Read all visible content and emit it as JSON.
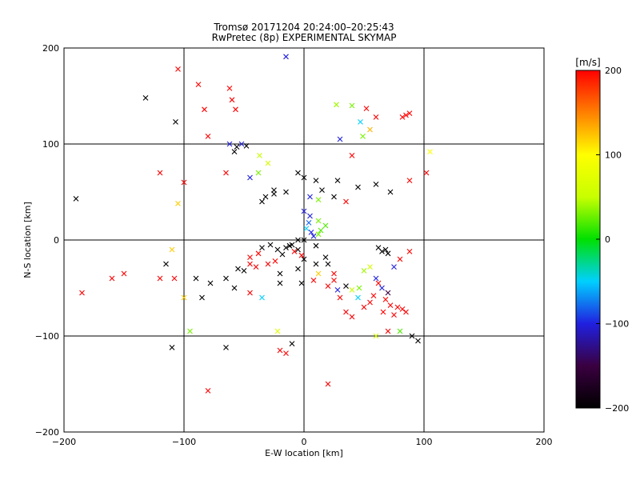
{
  "chart_data": {
    "type": "scatter",
    "title": "Tromsø 20171204 20:24:00–20:25:43",
    "subtitle": "RwPretec (8p) EXPERIMENTAL SKYMAP",
    "xlabel": "E-W location [km]",
    "ylabel": "N-S location [km]",
    "xlim": [
      -200,
      200
    ],
    "ylim": [
      -200,
      200
    ],
    "xticks": [
      -200,
      -100,
      0,
      100,
      200
    ],
    "yticks": [
      -200,
      -100,
      0,
      100,
      200
    ],
    "grid": true,
    "colorbar": {
      "label": "[m/s]",
      "min": -200,
      "max": 200,
      "ticks": [
        200,
        100,
        0,
        -100,
        -200
      ],
      "colormap": [
        "#000000",
        "#3a0040",
        "#2020e0",
        "#00d0ff",
        "#00e000",
        "#c8ff00",
        "#ffff00",
        "#ff8000",
        "#ff0000"
      ]
    },
    "markers": {
      "cross": "x",
      "dot": "."
    },
    "points": [
      [
        -132,
        148,
        "x",
        -200
      ],
      [
        -107,
        123,
        "x",
        -200
      ],
      [
        -105,
        178,
        "x",
        200
      ],
      [
        -88,
        162,
        "x",
        200
      ],
      [
        -83,
        136,
        "x",
        200
      ],
      [
        -62,
        158,
        "x",
        200
      ],
      [
        -60,
        146,
        "x",
        200
      ],
      [
        -57,
        136,
        "x",
        200
      ],
      [
        -15,
        191,
        "x",
        -100
      ],
      [
        27,
        141,
        "x",
        40
      ],
      [
        40,
        140,
        "x",
        30
      ],
      [
        52,
        137,
        "x",
        200
      ],
      [
        60,
        128,
        "x",
        200
      ],
      [
        55,
        115,
        "x",
        130
      ],
      [
        47,
        123,
        "x",
        -50
      ],
      [
        49,
        108,
        "x",
        30
      ],
      [
        85,
        130,
        "x",
        200
      ],
      [
        88,
        132,
        "x",
        200
      ],
      [
        82,
        128,
        "x",
        200
      ],
      [
        30,
        105,
        "x",
        -100
      ],
      [
        -80,
        108,
        "x",
        200
      ],
      [
        -62,
        100,
        "x",
        -100
      ],
      [
        -56,
        97,
        "x",
        -200
      ],
      [
        -52,
        100,
        "x",
        -100
      ],
      [
        -48,
        98,
        "x",
        -200
      ],
      [
        -58,
        92,
        "x",
        -200
      ],
      [
        -120,
        70,
        "x",
        200
      ],
      [
        -105,
        38,
        "x",
        120
      ],
      [
        -190,
        43,
        "x",
        -200
      ],
      [
        -100,
        60,
        "x",
        200
      ],
      [
        -65,
        70,
        "x",
        200
      ],
      [
        -45,
        65,
        "x",
        -100
      ],
      [
        -38,
        70,
        "x",
        30
      ],
      [
        -37,
        88,
        "x",
        50
      ],
      [
        -30,
        80,
        "x",
        60
      ],
      [
        -25,
        52,
        "x",
        -200
      ],
      [
        -15,
        50,
        "x",
        -200
      ],
      [
        -5,
        70,
        "x",
        -200
      ],
      [
        0,
        65,
        "x",
        -200
      ],
      [
        10,
        62,
        "x",
        -200
      ],
      [
        15,
        52,
        "x",
        -200
      ],
      [
        28,
        62,
        "x",
        -200
      ],
      [
        45,
        55,
        "x",
        -200
      ],
      [
        60,
        58,
        "x",
        -200
      ],
      [
        72,
        50,
        "x",
        -200
      ],
      [
        88,
        62,
        "x",
        200
      ],
      [
        102,
        70,
        "x",
        200
      ],
      [
        105,
        92,
        "x",
        100
      ],
      [
        40,
        88,
        "x",
        200
      ],
      [
        -110,
        -10,
        "x",
        120
      ],
      [
        -108,
        -40,
        "x",
        200
      ],
      [
        -115,
        -25,
        "x",
        -200
      ],
      [
        -90,
        -40,
        "x",
        -200
      ],
      [
        -85,
        -60,
        "x",
        -200
      ],
      [
        -78,
        -45,
        "x",
        -200
      ],
      [
        -65,
        -40,
        "x",
        -200
      ],
      [
        -58,
        -50,
        "x",
        -200
      ],
      [
        -45,
        -55,
        "x",
        200
      ],
      [
        -45,
        -25,
        "x",
        200
      ],
      [
        -35,
        -60,
        "x",
        -50
      ],
      [
        -28,
        -5,
        "x",
        -200
      ],
      [
        -22,
        -10,
        "x",
        -200
      ],
      [
        -18,
        -15,
        "x",
        -200
      ],
      [
        -10,
        -5,
        "x",
        -200
      ],
      [
        -5,
        -10,
        "x",
        -200
      ],
      [
        0,
        -20,
        "x",
        -200
      ],
      [
        10,
        -25,
        "x",
        -200
      ],
      [
        18,
        -18,
        "x",
        -200
      ],
      [
        20,
        -25,
        "x",
        -200
      ],
      [
        25,
        -35,
        "x",
        200
      ],
      [
        30,
        -60,
        "x",
        200
      ],
      [
        35,
        -75,
        "x",
        200
      ],
      [
        40,
        -80,
        "x",
        200
      ],
      [
        50,
        -70,
        "x",
        200
      ],
      [
        58,
        -58,
        "x",
        200
      ],
      [
        62,
        -45,
        "x",
        200
      ],
      [
        68,
        -62,
        "x",
        200
      ],
      [
        72,
        -68,
        "x",
        200
      ],
      [
        78,
        -70,
        "x",
        200
      ],
      [
        82,
        -72,
        "x",
        200
      ],
      [
        85,
        -75,
        "x",
        200
      ],
      [
        75,
        -78,
        "x",
        200
      ],
      [
        66,
        -75,
        "x",
        200
      ],
      [
        55,
        -65,
        "x",
        200
      ],
      [
        45,
        -60,
        "x",
        -50
      ],
      [
        35,
        -48,
        "x",
        -200
      ],
      [
        28,
        -52,
        "x",
        -100
      ],
      [
        65,
        -12,
        "x",
        -200
      ],
      [
        68,
        -10,
        "x",
        -200
      ],
      [
        70,
        -14,
        "x",
        -200
      ],
      [
        62,
        -8,
        "x",
        -200
      ],
      [
        75,
        -28,
        "x",
        -100
      ],
      [
        88,
        -12,
        "x",
        200
      ],
      [
        95,
        -105,
        "x",
        -200
      ],
      [
        90,
        -100,
        "x",
        -200
      ],
      [
        70,
        -95,
        "x",
        200
      ],
      [
        60,
        -100,
        "x",
        60
      ],
      [
        80,
        -95,
        "x",
        20
      ],
      [
        -95,
        -95,
        "x",
        30
      ],
      [
        -110,
        -112,
        "x",
        -200
      ],
      [
        -65,
        -112,
        "x",
        -200
      ],
      [
        -10,
        -108,
        "x",
        -200
      ],
      [
        -22,
        -95,
        "x",
        70
      ],
      [
        -20,
        -115,
        "x",
        200
      ],
      [
        -15,
        -118,
        "x",
        200
      ],
      [
        -80,
        -157,
        "x",
        200
      ],
      [
        20,
        -150,
        "x",
        200
      ],
      [
        -35,
        40,
        "x",
        -200
      ],
      [
        -32,
        45,
        "x",
        -200
      ],
      [
        -25,
        48,
        "x",
        -200
      ],
      [
        5,
        45,
        "x",
        -100
      ],
      [
        12,
        42,
        "x",
        30
      ],
      [
        25,
        45,
        "x",
        -200
      ],
      [
        35,
        40,
        "x",
        200
      ],
      [
        0,
        30,
        "x",
        -100
      ],
      [
        5,
        25,
        "x",
        -100
      ],
      [
        12,
        20,
        "x",
        30
      ],
      [
        18,
        15,
        "x",
        20
      ],
      [
        -5,
        -30,
        "x",
        -200
      ],
      [
        -20,
        -35,
        "x",
        -200
      ],
      [
        -30,
        -25,
        "x",
        200
      ],
      [
        -40,
        -28,
        "x",
        200
      ],
      [
        -50,
        -32,
        "x",
        -200
      ],
      [
        -55,
        -30,
        "x",
        -200
      ],
      [
        2,
        12,
        "x",
        -50
      ],
      [
        6,
        8,
        "x",
        -100
      ],
      [
        8,
        4,
        "x",
        -100
      ],
      [
        12,
        6,
        "x",
        30
      ],
      [
        14,
        10,
        "x",
        20
      ],
      [
        4,
        18,
        "x",
        -80
      ],
      [
        10,
        -6,
        "x",
        -200
      ],
      [
        0,
        0,
        "x",
        -200
      ],
      [
        -5,
        0,
        "x",
        -200
      ],
      [
        -12,
        -6,
        "x",
        -200
      ],
      [
        -15,
        -8,
        "x",
        -200
      ],
      [
        -35,
        -8,
        "x",
        -200
      ],
      [
        -8,
        -12,
        "x",
        200
      ],
      [
        -2,
        -16,
        "x",
        200
      ],
      [
        -24,
        -22,
        "x",
        200
      ],
      [
        -38,
        -14,
        "x",
        200
      ],
      [
        -45,
        -18,
        "x",
        200
      ],
      [
        -150,
        -35,
        "x",
        200
      ],
      [
        -160,
        -40,
        "x",
        200
      ],
      [
        -185,
        -55,
        "x",
        200
      ],
      [
        -100,
        -60,
        "x",
        120
      ],
      [
        -120,
        -40,
        "x",
        200
      ],
      [
        50,
        -32,
        "x",
        40
      ],
      [
        55,
        -28,
        "x",
        60
      ],
      [
        80,
        -20,
        "x",
        200
      ],
      [
        12,
        -35,
        "x",
        120
      ],
      [
        -2,
        -45,
        "x",
        -200
      ],
      [
        -20,
        -45,
        "x",
        -200
      ],
      [
        20,
        -48,
        "x",
        200
      ],
      [
        25,
        -42,
        "x",
        200
      ],
      [
        8,
        -42,
        "x",
        200
      ],
      [
        60,
        -40,
        "x",
        -100
      ],
      [
        65,
        -50,
        "x",
        -100
      ],
      [
        70,
        -55,
        "x",
        -150
      ],
      [
        46,
        -50,
        "x",
        30
      ],
      [
        40,
        -52,
        "x",
        50
      ]
    ]
  }
}
